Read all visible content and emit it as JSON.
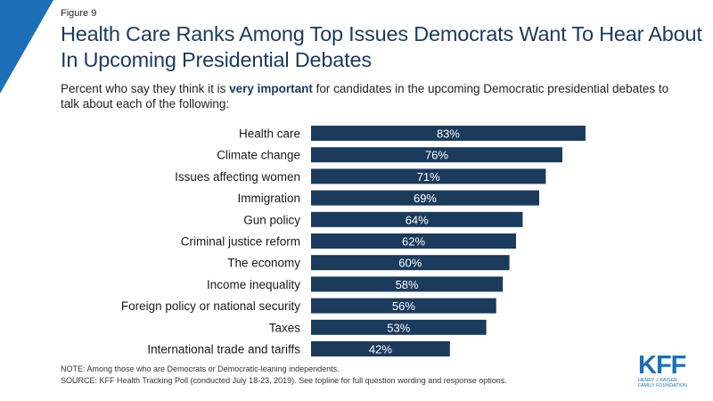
{
  "figure_label": "Figure 9",
  "title": "Health Care Ranks Among Top Issues Democrats Want To Hear About In Upcoming Presidential Debates",
  "subtitle": {
    "before": "Percent who say they think it is ",
    "emphasis": "very important",
    "after": " for candidates in the upcoming Democratic presidential debates to talk about each of the following:"
  },
  "chart_data": {
    "type": "bar",
    "orientation": "horizontal",
    "categories": [
      "Health care",
      "Climate change",
      "Issues affecting women",
      "Immigration",
      "Gun policy",
      "Criminal justice reform",
      "The economy",
      "Income inequality",
      "Foreign policy or national security",
      "Taxes",
      "International trade and tariffs"
    ],
    "values": [
      83,
      76,
      71,
      69,
      64,
      62,
      60,
      58,
      56,
      53,
      42
    ],
    "labels": [
      "83%",
      "76%",
      "71%",
      "69%",
      "64%",
      "62%",
      "60%",
      "58%",
      "56%",
      "53%",
      "42%"
    ],
    "xlim": [
      0,
      100
    ],
    "grid": false,
    "bar_color": "#1b3a5c",
    "label_color": "#ffffff"
  },
  "note": "NOTE: Among those who are Democrats or Democratic-leaning independents.",
  "source": "SOURCE: KFF Health Tracking Poll (conducted July 18-23, 2019). See topline for full question wording and response options.",
  "logo": {
    "mark": "KFF",
    "line1": "HENRY J KAISER",
    "line2": "FAMILY FOUNDATION",
    "color": "#1c6fb8"
  },
  "accent_color": "#1c6fb8"
}
